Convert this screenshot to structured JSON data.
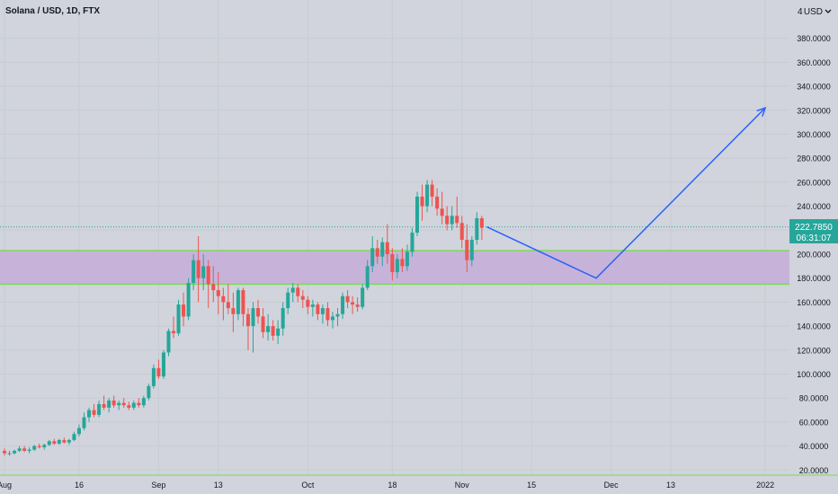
{
  "header": {
    "symbol": "Solana / USD, 1D, FTX",
    "currency": "USD"
  },
  "price_badge": {
    "price": "222.7850",
    "countdown": "06:31:07",
    "color": "#26a69a"
  },
  "colors": {
    "background": "#d1d4dc",
    "up": "#26a69a",
    "down": "#ef5350",
    "zone_fill": "#c7b3da",
    "zone_border": "#7ed957",
    "projection": "#2962ff"
  },
  "chart_data": {
    "type": "candlestick",
    "y_unit": "USD",
    "y_ticks": [
      20,
      40,
      60,
      80,
      100,
      120,
      140,
      160,
      180,
      200,
      220,
      240,
      260,
      280,
      300,
      320,
      340,
      360,
      380
    ],
    "y_tick_labels": [
      "20.0000",
      "40.0000",
      "60.0000",
      "80.0000",
      "100.0000",
      "120.0000",
      "140.0000",
      "160.0000",
      "180.0000",
      "200.0000",
      "220.0000",
      "240.0000",
      "260.0000",
      "280.0000",
      "300.0000",
      "320.0000",
      "340.0000",
      "360.0000",
      "380.0000"
    ],
    "top_partial_label": "4",
    "x_ticks": [
      {
        "label": "Aug",
        "date": "2021-08-01"
      },
      {
        "label": "16",
        "date": "2021-08-16"
      },
      {
        "label": "Sep",
        "date": "2021-09-01"
      },
      {
        "label": "13",
        "date": "2021-09-13"
      },
      {
        "label": "Oct",
        "date": "2021-10-01"
      },
      {
        "label": "18",
        "date": "2021-10-18"
      },
      {
        "label": "Nov",
        "date": "2021-11-01"
      },
      {
        "label": "15",
        "date": "2021-11-15"
      },
      {
        "label": "Dec",
        "date": "2021-12-01"
      },
      {
        "label": "13",
        "date": "2021-12-13"
      },
      {
        "label": "2022",
        "date": "2022-01-01"
      }
    ],
    "start_date": "2021-08-01",
    "ohlc": [
      [
        36,
        38,
        32,
        34
      ],
      [
        34,
        36,
        32,
        34
      ],
      [
        34,
        37,
        33,
        36
      ],
      [
        36,
        40,
        35,
        38
      ],
      [
        38,
        40,
        35,
        36
      ],
      [
        36,
        39,
        34,
        37
      ],
      [
        37,
        41,
        36,
        40
      ],
      [
        40,
        42,
        38,
        39
      ],
      [
        39,
        42,
        37,
        41
      ],
      [
        41,
        45,
        40,
        44
      ],
      [
        44,
        46,
        41,
        42
      ],
      [
        42,
        46,
        41,
        45
      ],
      [
        45,
        47,
        42,
        43
      ],
      [
        43,
        46,
        41,
        45
      ],
      [
        45,
        52,
        44,
        50
      ],
      [
        50,
        58,
        48,
        55
      ],
      [
        55,
        68,
        53,
        64
      ],
      [
        64,
        72,
        60,
        70
      ],
      [
        70,
        75,
        64,
        66
      ],
      [
        66,
        78,
        64,
        75
      ],
      [
        75,
        82,
        70,
        72
      ],
      [
        72,
        80,
        68,
        78
      ],
      [
        78,
        82,
        72,
        74
      ],
      [
        74,
        78,
        70,
        76
      ],
      [
        76,
        80,
        72,
        74
      ],
      [
        74,
        77,
        70,
        72
      ],
      [
        72,
        78,
        70,
        76
      ],
      [
        76,
        80,
        72,
        74
      ],
      [
        74,
        82,
        72,
        80
      ],
      [
        80,
        92,
        78,
        90
      ],
      [
        90,
        108,
        88,
        105
      ],
      [
        105,
        112,
        96,
        98
      ],
      [
        98,
        120,
        96,
        118
      ],
      [
        118,
        138,
        115,
        136
      ],
      [
        136,
        148,
        130,
        134
      ],
      [
        134,
        162,
        132,
        158
      ],
      [
        158,
        168,
        140,
        148
      ],
      [
        148,
        180,
        145,
        176
      ],
      [
        176,
        200,
        170,
        195
      ],
      [
        195,
        215,
        160,
        180
      ],
      [
        180,
        200,
        170,
        190
      ],
      [
        190,
        195,
        155,
        175
      ],
      [
        175,
        190,
        160,
        170
      ],
      [
        170,
        185,
        150,
        165
      ],
      [
        165,
        172,
        145,
        160
      ],
      [
        160,
        175,
        150,
        155
      ],
      [
        155,
        168,
        135,
        150
      ],
      [
        150,
        172,
        145,
        170
      ],
      [
        170,
        172,
        140,
        150
      ],
      [
        150,
        155,
        120,
        140
      ],
      [
        140,
        160,
        118,
        155
      ],
      [
        155,
        162,
        142,
        148
      ],
      [
        148,
        155,
        130,
        135
      ],
      [
        135,
        150,
        128,
        140
      ],
      [
        140,
        145,
        128,
        132
      ],
      [
        132,
        145,
        125,
        138
      ],
      [
        138,
        160,
        132,
        155
      ],
      [
        155,
        172,
        150,
        168
      ],
      [
        168,
        176,
        160,
        172
      ],
      [
        172,
        175,
        160,
        165
      ],
      [
        165,
        170,
        155,
        162
      ],
      [
        162,
        165,
        150,
        156
      ],
      [
        156,
        162,
        148,
        158
      ],
      [
        158,
        160,
        145,
        150
      ],
      [
        150,
        158,
        142,
        155
      ],
      [
        155,
        160,
        140,
        145
      ],
      [
        145,
        152,
        138,
        148
      ],
      [
        148,
        155,
        140,
        150
      ],
      [
        150,
        168,
        146,
        165
      ],
      [
        165,
        170,
        155,
        160
      ],
      [
        160,
        165,
        150,
        158
      ],
      [
        158,
        164,
        152,
        156
      ],
      [
        156,
        175,
        154,
        172
      ],
      [
        172,
        195,
        170,
        190
      ],
      [
        190,
        215,
        185,
        205
      ],
      [
        205,
        212,
        192,
        198
      ],
      [
        198,
        214,
        190,
        210
      ],
      [
        210,
        225,
        192,
        200
      ],
      [
        200,
        205,
        178,
        185
      ],
      [
        185,
        200,
        180,
        196
      ],
      [
        196,
        205,
        185,
        190
      ],
      [
        190,
        208,
        186,
        202
      ],
      [
        202,
        222,
        198,
        218
      ],
      [
        218,
        252,
        215,
        248
      ],
      [
        248,
        258,
        228,
        240
      ],
      [
        240,
        262,
        235,
        258
      ],
      [
        258,
        262,
        240,
        248
      ],
      [
        248,
        255,
        232,
        238
      ],
      [
        238,
        252,
        225,
        232
      ],
      [
        232,
        240,
        220,
        225
      ],
      [
        225,
        240,
        220,
        232
      ],
      [
        232,
        248,
        222,
        226
      ],
      [
        226,
        232,
        205,
        212
      ],
      [
        212,
        225,
        185,
        195
      ],
      [
        195,
        215,
        190,
        212
      ],
      [
        212,
        235,
        208,
        230
      ],
      [
        230,
        232,
        212,
        222
      ]
    ],
    "zone": {
      "low": 175,
      "high": 203
    },
    "current_price": 222.785,
    "projection": [
      {
        "date": "2021-11-06",
        "price": 222.785
      },
      {
        "date": "2021-11-28",
        "price": 180
      },
      {
        "date": "2022-01-01",
        "price": 322
      }
    ]
  }
}
